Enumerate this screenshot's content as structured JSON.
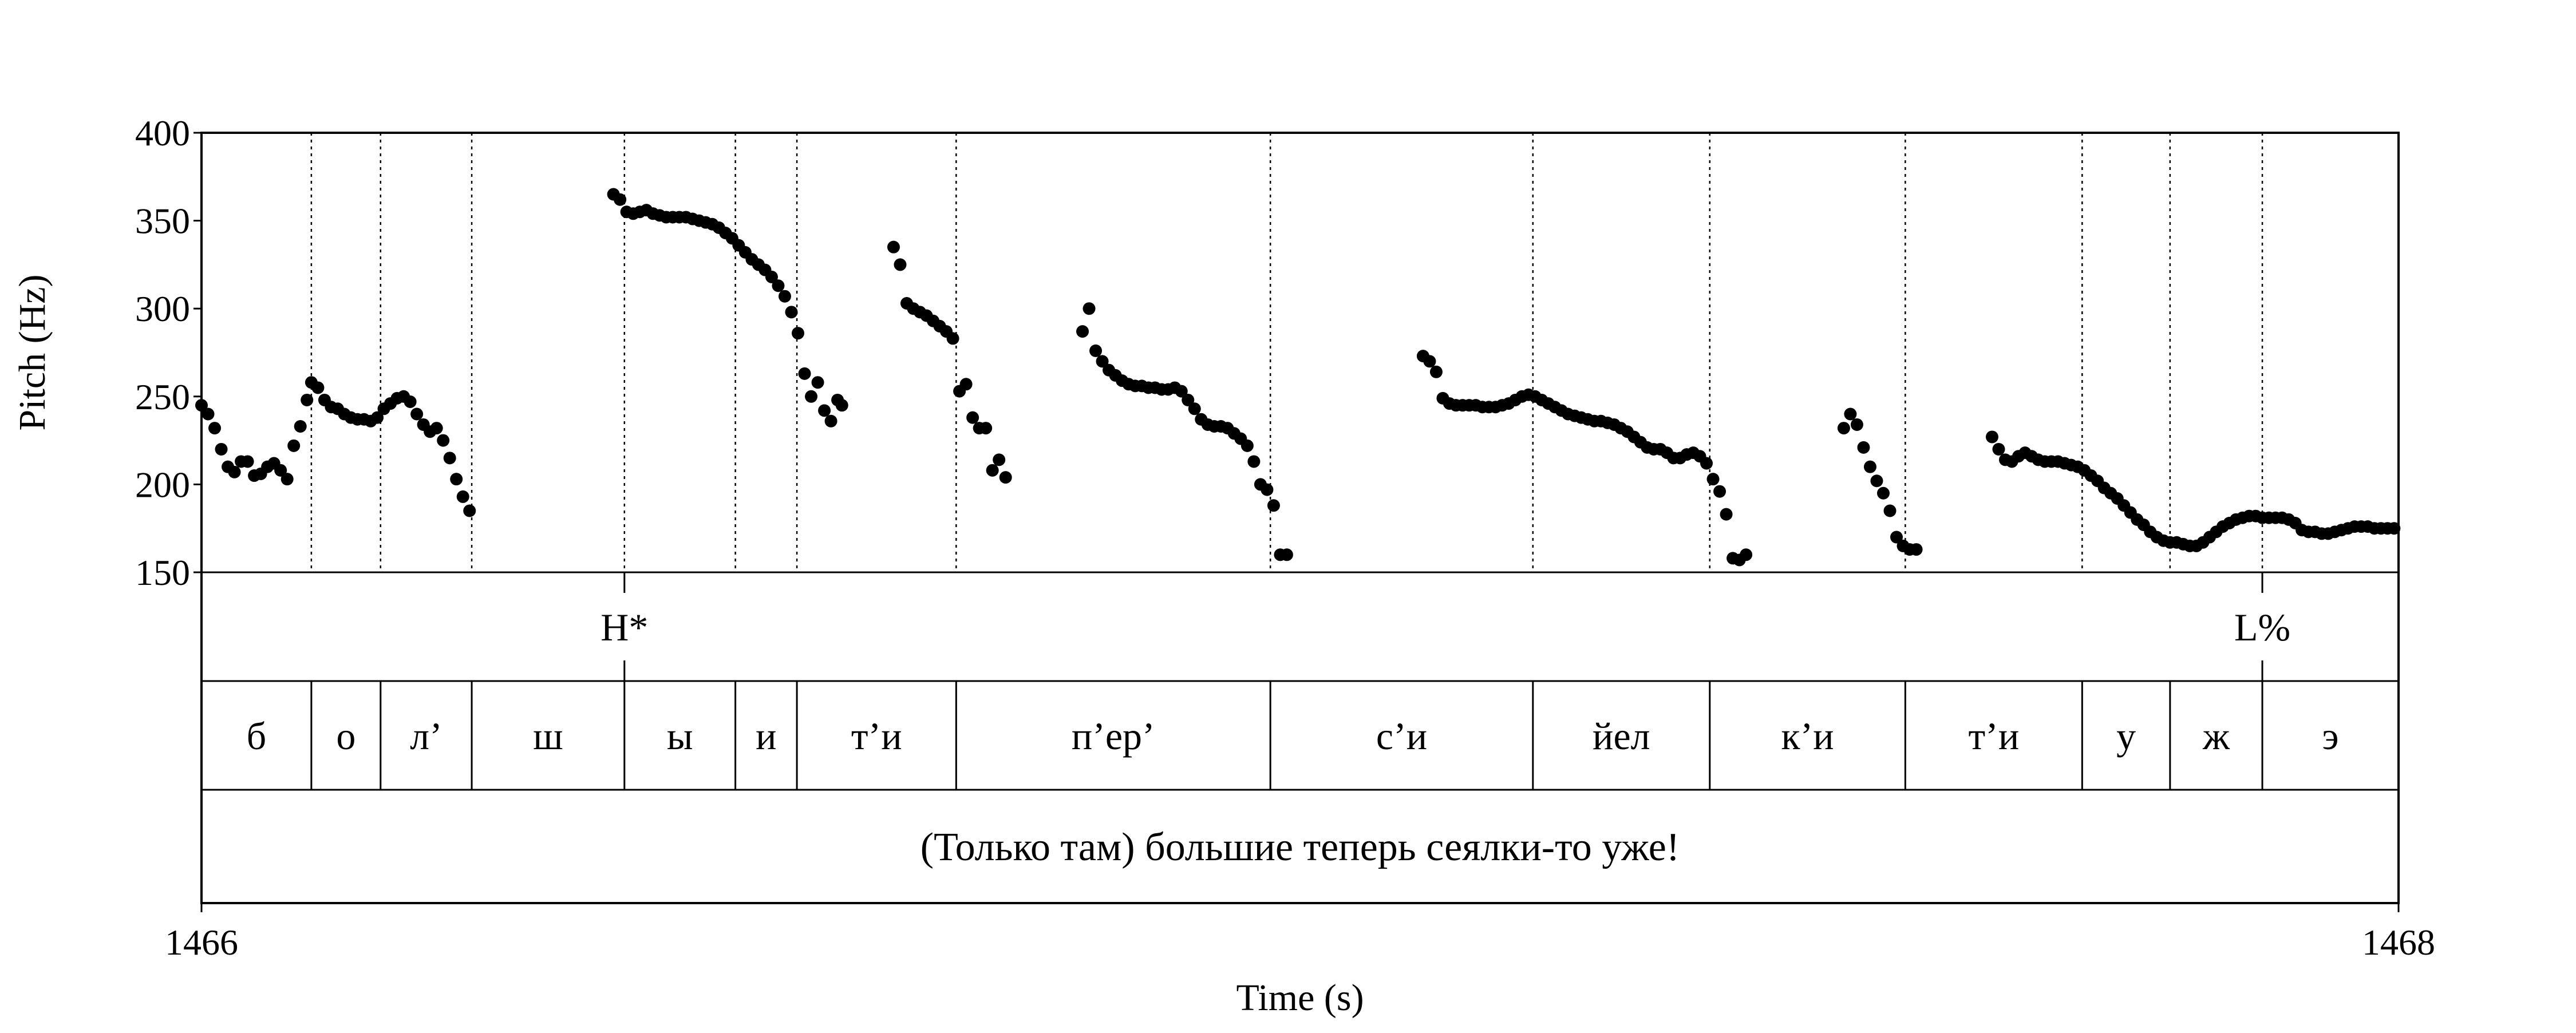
{
  "chart_data": {
    "type": "scatter",
    "xlabel": "Time (s)",
    "ylabel": "Pitch (Hz)",
    "xlim": [
      1466,
      1468
    ],
    "ylim": [
      150,
      400
    ],
    "x_ticks": [
      "1466",
      "1468"
    ],
    "y_ticks": [
      "400",
      "350",
      "300",
      "250",
      "200",
      "150"
    ],
    "grid": false,
    "tone_tier": [
      {
        "label": "H*",
        "time": 1466.385
      },
      {
        "label": "L%",
        "time": 1467.876
      }
    ],
    "segment_tier": [
      {
        "label": "б",
        "start": 1466.0,
        "end": 1466.1
      },
      {
        "label": "о",
        "start": 1466.1,
        "end": 1466.163
      },
      {
        "label": "л’",
        "start": 1466.163,
        "end": 1466.246
      },
      {
        "label": "ш",
        "start": 1466.246,
        "end": 1466.385
      },
      {
        "label": "ы",
        "start": 1466.385,
        "end": 1466.486
      },
      {
        "label": "и",
        "start": 1466.486,
        "end": 1466.542
      },
      {
        "label": "т’и",
        "start": 1466.542,
        "end": 1466.687
      },
      {
        "label": "п’ер’",
        "start": 1466.687,
        "end": 1466.973
      },
      {
        "label": "с’и",
        "start": 1466.973,
        "end": 1467.212
      },
      {
        "label": "йел",
        "start": 1467.212,
        "end": 1467.373
      },
      {
        "label": "к’и",
        "start": 1467.373,
        "end": 1467.551
      },
      {
        "label": "т’и",
        "start": 1467.551,
        "end": 1467.712
      },
      {
        "label": "у",
        "start": 1467.712,
        "end": 1467.792
      },
      {
        "label": "ж",
        "start": 1467.792,
        "end": 1467.876
      },
      {
        "label": "э",
        "start": 1467.876,
        "end": 1468.0
      }
    ],
    "sentence_tier": "(Только там) большие теперь сеялки-то уже!",
    "series": [
      {
        "points": [
          [
            1466.0,
            245
          ],
          [
            1466.006,
            240
          ],
          [
            1466.012,
            232
          ],
          [
            1466.018,
            220
          ],
          [
            1466.024,
            210
          ],
          [
            1466.03,
            207
          ],
          [
            1466.036,
            213
          ],
          [
            1466.042,
            213
          ],
          [
            1466.048,
            205
          ],
          [
            1466.054,
            206
          ],
          [
            1466.06,
            210
          ],
          [
            1466.066,
            212
          ],
          [
            1466.072,
            208
          ],
          [
            1466.078,
            203
          ],
          [
            1466.084,
            222
          ],
          [
            1466.09,
            233
          ],
          [
            1466.096,
            248
          ],
          [
            1466.1,
            258
          ],
          [
            1466.106,
            255
          ],
          [
            1466.112,
            248
          ],
          [
            1466.118,
            244
          ],
          [
            1466.124,
            243
          ],
          [
            1466.13,
            240
          ],
          [
            1466.136,
            238
          ],
          [
            1466.142,
            237
          ],
          [
            1466.148,
            237
          ],
          [
            1466.154,
            236
          ],
          [
            1466.16,
            238
          ],
          [
            1466.166,
            243
          ],
          [
            1466.172,
            246
          ],
          [
            1466.178,
            249
          ],
          [
            1466.184,
            250
          ],
          [
            1466.19,
            247
          ],
          [
            1466.196,
            240
          ],
          [
            1466.202,
            234
          ],
          [
            1466.208,
            230
          ],
          [
            1466.214,
            232
          ],
          [
            1466.22,
            225
          ],
          [
            1466.226,
            215
          ],
          [
            1466.232,
            203
          ],
          [
            1466.238,
            193
          ],
          [
            1466.244,
            185
          ]
        ]
      },
      {
        "points": [
          [
            1466.375,
            365
          ],
          [
            1466.381,
            362
          ],
          [
            1466.387,
            355
          ],
          [
            1466.393,
            354
          ],
          [
            1466.399,
            355
          ],
          [
            1466.405,
            356
          ],
          [
            1466.411,
            354
          ],
          [
            1466.417,
            353
          ],
          [
            1466.423,
            352
          ],
          [
            1466.429,
            352
          ],
          [
            1466.435,
            352
          ],
          [
            1466.441,
            352
          ],
          [
            1466.447,
            351
          ],
          [
            1466.453,
            350
          ],
          [
            1466.459,
            349
          ],
          [
            1466.465,
            348
          ],
          [
            1466.471,
            346
          ],
          [
            1466.477,
            343
          ],
          [
            1466.483,
            340
          ],
          [
            1466.489,
            336
          ],
          [
            1466.495,
            332
          ],
          [
            1466.501,
            328
          ],
          [
            1466.507,
            325
          ],
          [
            1466.513,
            322
          ],
          [
            1466.519,
            318
          ],
          [
            1466.525,
            313
          ],
          [
            1466.531,
            307
          ],
          [
            1466.537,
            298
          ],
          [
            1466.543,
            286
          ],
          [
            1466.549,
            263
          ],
          [
            1466.555,
            250
          ],
          [
            1466.561,
            258
          ],
          [
            1466.567,
            242
          ],
          [
            1466.573,
            236
          ],
          [
            1466.579,
            248
          ],
          [
            1466.583,
            245
          ]
        ]
      },
      {
        "points": [
          [
            1466.63,
            335
          ],
          [
            1466.636,
            325
          ],
          [
            1466.642,
            303
          ],
          [
            1466.648,
            300
          ],
          [
            1466.654,
            298
          ],
          [
            1466.66,
            296
          ],
          [
            1466.666,
            293
          ],
          [
            1466.672,
            290
          ],
          [
            1466.678,
            287
          ],
          [
            1466.684,
            283
          ],
          [
            1466.69,
            253
          ],
          [
            1466.696,
            257
          ],
          [
            1466.702,
            238
          ],
          [
            1466.708,
            232
          ],
          [
            1466.714,
            232
          ],
          [
            1466.72,
            208
          ],
          [
            1466.726,
            214
          ],
          [
            1466.732,
            204
          ]
        ]
      },
      {
        "points": [
          [
            1466.802,
            287
          ],
          [
            1466.808,
            300
          ],
          [
            1466.814,
            276
          ],
          [
            1466.82,
            270
          ],
          [
            1466.826,
            265
          ],
          [
            1466.832,
            262
          ],
          [
            1466.838,
            259
          ],
          [
            1466.844,
            257
          ],
          [
            1466.85,
            256
          ],
          [
            1466.856,
            256
          ],
          [
            1466.862,
            255
          ],
          [
            1466.868,
            255
          ],
          [
            1466.874,
            254
          ],
          [
            1466.88,
            254
          ],
          [
            1466.886,
            255
          ],
          [
            1466.892,
            253
          ],
          [
            1466.898,
            248
          ],
          [
            1466.904,
            243
          ],
          [
            1466.91,
            237
          ],
          [
            1466.916,
            234
          ],
          [
            1466.922,
            233
          ],
          [
            1466.928,
            233
          ],
          [
            1466.934,
            232
          ],
          [
            1466.94,
            229
          ],
          [
            1466.946,
            226
          ],
          [
            1466.952,
            222
          ],
          [
            1466.958,
            213
          ],
          [
            1466.964,
            200
          ],
          [
            1466.97,
            197
          ],
          [
            1466.976,
            188
          ],
          [
            1466.982,
            160
          ],
          [
            1466.988,
            160
          ]
        ]
      },
      {
        "points": [
          [
            1467.112,
            273
          ],
          [
            1467.118,
            270
          ],
          [
            1467.124,
            264
          ],
          [
            1467.13,
            249
          ],
          [
            1467.136,
            246
          ],
          [
            1467.142,
            245
          ],
          [
            1467.148,
            245
          ],
          [
            1467.154,
            245
          ],
          [
            1467.16,
            245
          ],
          [
            1467.166,
            244
          ],
          [
            1467.172,
            244
          ],
          [
            1467.178,
            244
          ],
          [
            1467.184,
            245
          ],
          [
            1467.19,
            246
          ],
          [
            1467.196,
            248
          ],
          [
            1467.202,
            250
          ],
          [
            1467.208,
            251
          ],
          [
            1467.214,
            250
          ],
          [
            1467.22,
            248
          ],
          [
            1467.226,
            246
          ],
          [
            1467.232,
            244
          ],
          [
            1467.238,
            242
          ],
          [
            1467.244,
            240
          ],
          [
            1467.25,
            239
          ],
          [
            1467.256,
            238
          ],
          [
            1467.262,
            237
          ],
          [
            1467.268,
            236
          ],
          [
            1467.274,
            236
          ],
          [
            1467.28,
            235
          ],
          [
            1467.286,
            234
          ],
          [
            1467.292,
            232
          ],
          [
            1467.298,
            230
          ],
          [
            1467.304,
            227
          ],
          [
            1467.31,
            224
          ],
          [
            1467.316,
            221
          ],
          [
            1467.322,
            220
          ],
          [
            1467.328,
            220
          ],
          [
            1467.334,
            218
          ],
          [
            1467.34,
            215
          ],
          [
            1467.346,
            215
          ],
          [
            1467.352,
            217
          ],
          [
            1467.358,
            218
          ],
          [
            1467.364,
            216
          ],
          [
            1467.37,
            212
          ],
          [
            1467.376,
            203
          ],
          [
            1467.382,
            196
          ],
          [
            1467.388,
            183
          ],
          [
            1467.394,
            158
          ],
          [
            1467.4,
            157
          ],
          [
            1467.406,
            160
          ]
        ]
      },
      {
        "points": [
          [
            1467.495,
            232
          ],
          [
            1467.501,
            240
          ],
          [
            1467.507,
            234
          ],
          [
            1467.513,
            221
          ],
          [
            1467.519,
            210
          ],
          [
            1467.525,
            202
          ],
          [
            1467.531,
            195
          ],
          [
            1467.537,
            185
          ],
          [
            1467.543,
            170
          ],
          [
            1467.549,
            165
          ],
          [
            1467.555,
            163
          ],
          [
            1467.561,
            163
          ]
        ]
      },
      {
        "points": [
          [
            1467.63,
            227
          ],
          [
            1467.636,
            220
          ],
          [
            1467.642,
            214
          ],
          [
            1467.648,
            213
          ],
          [
            1467.654,
            216
          ],
          [
            1467.66,
            218
          ],
          [
            1467.666,
            216
          ],
          [
            1467.672,
            214
          ],
          [
            1467.678,
            213
          ],
          [
            1467.684,
            213
          ],
          [
            1467.69,
            213
          ],
          [
            1467.696,
            212
          ],
          [
            1467.702,
            211
          ],
          [
            1467.708,
            210
          ],
          [
            1467.714,
            208
          ],
          [
            1467.72,
            205
          ],
          [
            1467.726,
            202
          ],
          [
            1467.732,
            198
          ],
          [
            1467.738,
            195
          ],
          [
            1467.744,
            192
          ],
          [
            1467.75,
            188
          ],
          [
            1467.756,
            184
          ],
          [
            1467.762,
            180
          ],
          [
            1467.768,
            177
          ],
          [
            1467.774,
            173
          ],
          [
            1467.78,
            170
          ],
          [
            1467.786,
            168
          ],
          [
            1467.792,
            167
          ],
          [
            1467.798,
            167
          ],
          [
            1467.804,
            166
          ],
          [
            1467.81,
            165
          ],
          [
            1467.816,
            165
          ],
          [
            1467.822,
            167
          ],
          [
            1467.828,
            170
          ],
          [
            1467.834,
            173
          ],
          [
            1467.84,
            176
          ],
          [
            1467.846,
            178
          ],
          [
            1467.852,
            180
          ],
          [
            1467.858,
            181
          ],
          [
            1467.864,
            182
          ],
          [
            1467.87,
            182
          ],
          [
            1467.876,
            181
          ],
          [
            1467.882,
            181
          ],
          [
            1467.888,
            181
          ],
          [
            1467.894,
            181
          ],
          [
            1467.9,
            180
          ],
          [
            1467.906,
            178
          ],
          [
            1467.912,
            174
          ],
          [
            1467.918,
            173
          ],
          [
            1467.924,
            173
          ],
          [
            1467.93,
            172
          ],
          [
            1467.936,
            172
          ],
          [
            1467.942,
            173
          ],
          [
            1467.948,
            174
          ],
          [
            1467.954,
            175
          ],
          [
            1467.96,
            176
          ],
          [
            1467.966,
            176
          ],
          [
            1467.972,
            176
          ],
          [
            1467.978,
            175
          ],
          [
            1467.984,
            175
          ],
          [
            1467.99,
            175
          ],
          [
            1467.996,
            175
          ]
        ]
      }
    ]
  }
}
